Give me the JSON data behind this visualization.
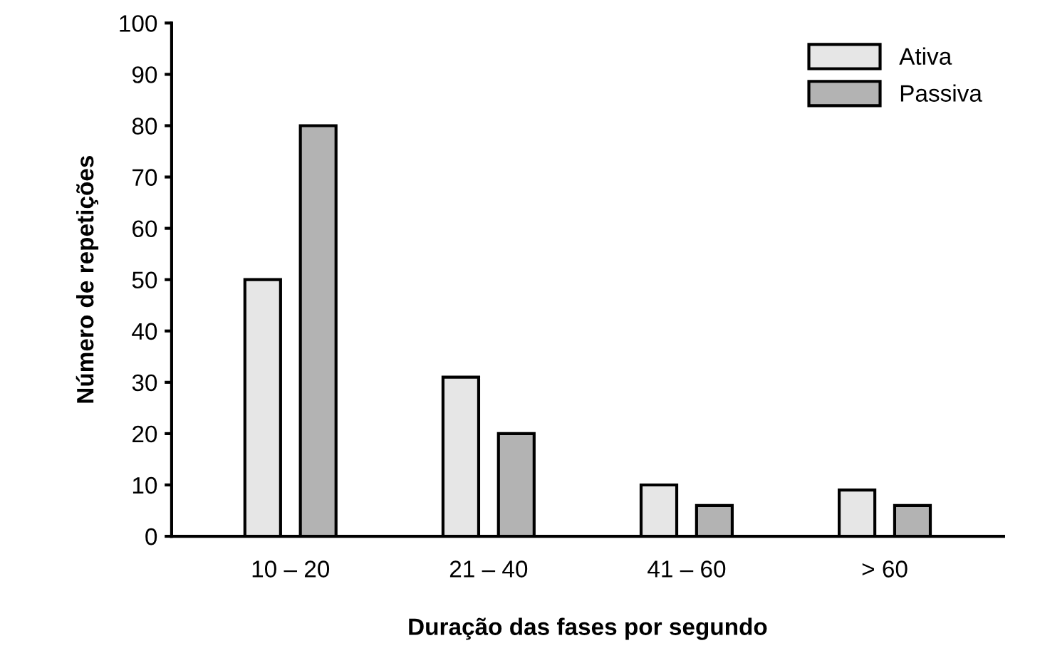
{
  "chart_data": {
    "type": "bar",
    "xlabel": "Duração das fases por segundo",
    "ylabel": "Número de repetições",
    "categories": [
      "10 – 20",
      "21 – 40",
      "41 – 60",
      "> 60"
    ],
    "series": [
      {
        "name": "Ativa",
        "color": "#e6e6e6",
        "values": [
          50,
          31,
          10,
          9
        ]
      },
      {
        "name": "Passiva",
        "color": "#b3b3b3",
        "values": [
          80,
          20,
          6,
          6
        ]
      }
    ],
    "ylim": [
      0,
      100
    ],
    "yticks": [
      0,
      10,
      20,
      30,
      40,
      50,
      60,
      70,
      80,
      90,
      100
    ],
    "grid": false,
    "legend": "top right"
  }
}
